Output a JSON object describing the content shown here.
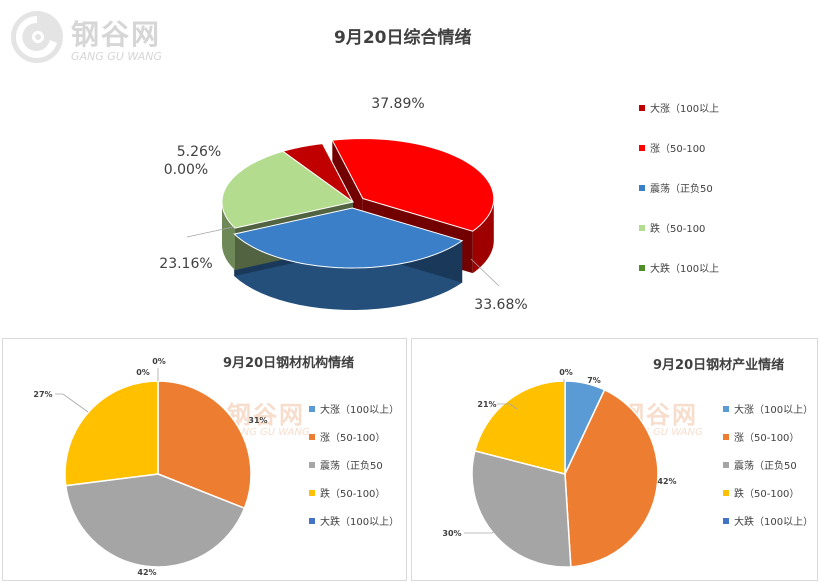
{
  "watermark": {
    "text": "钢谷网",
    "sub": "GANG GU WANG"
  },
  "chart_data": [
    {
      "type": "pie",
      "title": "9月20日综合情绪",
      "categories": [
        "大涨（100以上",
        "涨（50-100",
        "震荡（正负50",
        "跌（50-100",
        "大跌（100以上"
      ],
      "values": [
        5.26,
        37.89,
        33.68,
        23.16,
        0.0
      ],
      "labels": [
        "5.26%",
        "37.89%",
        "33.68%",
        "23.16%",
        "0.00%"
      ],
      "colors": [
        "#c00000",
        "#ff0000",
        "#3a7fc7",
        "#b3dc8e",
        "#4e8f2c"
      ],
      "style": "3d",
      "legend": "right"
    },
    {
      "type": "pie",
      "title": "9月20日钢材机构情绪",
      "categories": [
        "大涨（100以上）",
        "涨（50-100）",
        "震荡（正负50",
        "跌（50-100）",
        "大跌（100以上）"
      ],
      "values": [
        0,
        31,
        42,
        27,
        0
      ],
      "labels": [
        "0%",
        "31%",
        "42%",
        "27%",
        "0%"
      ],
      "colors": [
        "#5b9bd5",
        "#ed7d31",
        "#a5a5a5",
        "#ffc000",
        "#4472c4"
      ],
      "legend": "right"
    },
    {
      "type": "pie",
      "title": "9月20日钢材产业情绪",
      "categories": [
        "大涨（100以上）",
        "涨（50-100）",
        "震荡（正负50",
        "跌（50-100）",
        "大跌（100以上）"
      ],
      "values": [
        7,
        42,
        30,
        21,
        0
      ],
      "labels": [
        "7%",
        "42%",
        "30%",
        "21%",
        "0%"
      ],
      "colors": [
        "#5b9bd5",
        "#ed7d31",
        "#a5a5a5",
        "#ffc000",
        "#4472c4"
      ],
      "legend": "right"
    }
  ]
}
